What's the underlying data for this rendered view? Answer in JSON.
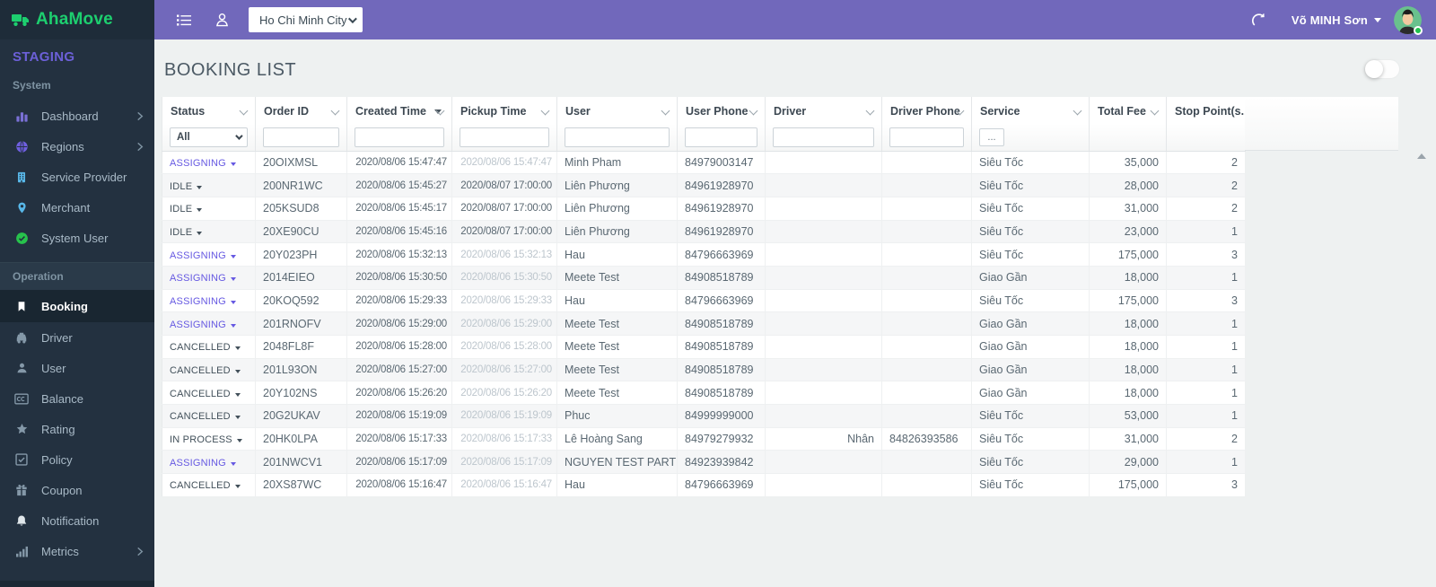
{
  "brand": {
    "name": "AhaMove",
    "env": "STAGING",
    "logo_icon": "truck-icon",
    "green": "#1dcf6f",
    "env_color": "#6c60d8"
  },
  "topbar": {
    "menu_icon": "menu-icon",
    "profile_icon": "user-outline-icon",
    "city": "Ho Chi Minh City",
    "refresh_icon": "refresh-icon",
    "user": "Võ MINH Sơn",
    "bar_color": "#7168bb"
  },
  "sidebar": {
    "sections": [
      {
        "label": "System",
        "band": false,
        "items": [
          {
            "label": "Dashboard",
            "icon": "bar-chart-icon",
            "icon_color": "#7a70d6",
            "chevron": true
          },
          {
            "label": "Regions",
            "icon": "globe-icon",
            "icon_color": "#6f5fe0",
            "chevron": true
          },
          {
            "label": "Service Provider",
            "icon": "building-icon",
            "icon_color": "#58b7e8",
            "chevron": false
          },
          {
            "label": "Merchant",
            "icon": "map-pin-icon",
            "icon_color": "#58b7e8",
            "chevron": false
          },
          {
            "label": "System User",
            "icon": "check-circle-icon",
            "icon_color": "#27c24c",
            "chevron": false
          }
        ]
      },
      {
        "label": "Operation",
        "band": true,
        "items": [
          {
            "label": "Booking",
            "icon": "bookmark-icon",
            "icon_color": "#ffffff",
            "chevron": false,
            "active": true
          },
          {
            "label": "Driver",
            "icon": "car-icon",
            "icon_color": "#8498a8",
            "chevron": false
          },
          {
            "label": "User",
            "icon": "user-icon",
            "icon_color": "#8498a8",
            "chevron": false
          },
          {
            "label": "Balance",
            "icon": "credit-card-icon",
            "icon_color": "#8498a8",
            "chevron": false
          },
          {
            "label": "Rating",
            "icon": "star-icon",
            "icon_color": "#8498a8",
            "chevron": false
          },
          {
            "label": "Policy",
            "icon": "check-square-icon",
            "icon_color": "#8498a8",
            "chevron": false
          },
          {
            "label": "Coupon",
            "icon": "gift-icon",
            "icon_color": "#8498a8",
            "chevron": false
          },
          {
            "label": "Notification",
            "icon": "bell-icon",
            "icon_color": "#dfe6ea",
            "chevron": false
          },
          {
            "label": "Metrics",
            "icon": "chart-icon",
            "icon_color": "#8498a8",
            "chevron": true
          }
        ]
      }
    ]
  },
  "page": {
    "title": "BOOKING LIST"
  },
  "table": {
    "columns": [
      {
        "label": "Status",
        "chevron": true,
        "filter": "select",
        "filter_value": "All"
      },
      {
        "label": "Order ID",
        "chevron": true,
        "filter": "input"
      },
      {
        "label": "Created Time",
        "chevron": true,
        "sorted": true,
        "filter": "input"
      },
      {
        "label": "Pickup Time",
        "chevron": true,
        "filter": "input"
      },
      {
        "label": "User",
        "chevron": true,
        "filter": "input"
      },
      {
        "label": "User Phone",
        "chevron": true,
        "filter": "input"
      },
      {
        "label": "Driver",
        "chevron": true,
        "filter": "input"
      },
      {
        "label": "Driver Phone",
        "chevron": true,
        "filter": "input"
      },
      {
        "label": "Service",
        "chevron": true,
        "filter": "button",
        "filter_value": "..."
      },
      {
        "label": "Total Fee",
        "chevron": true,
        "filter": "none"
      },
      {
        "label": "Stop Point(s...",
        "chevron": false,
        "filter": "none"
      }
    ],
    "status_accent_color": "#6659e2",
    "rows": [
      {
        "status": "ASSIGNING",
        "status_accent": true,
        "order_id": "20OIXMSL",
        "created": "2020/08/06 15:47:47",
        "pickup": "2020/08/06 15:47:47",
        "pickup_muted": true,
        "user": "Minh Pham",
        "user_phone": "84979003147",
        "driver": "",
        "driver_phone": "",
        "service": "Siêu Tốc",
        "total_fee": "35,000",
        "stops": "2"
      },
      {
        "status": "IDLE",
        "status_accent": false,
        "order_id": "200NR1WC",
        "created": "2020/08/06 15:45:27",
        "pickup": "2020/08/07 17:00:00",
        "pickup_muted": false,
        "user": "Liên Phương",
        "user_phone": "84961928970",
        "driver": "",
        "driver_phone": "",
        "service": "Siêu Tốc",
        "total_fee": "28,000",
        "stops": "2"
      },
      {
        "status": "IDLE",
        "status_accent": false,
        "order_id": "205KSUD8",
        "created": "2020/08/06 15:45:17",
        "pickup": "2020/08/07 17:00:00",
        "pickup_muted": false,
        "user": "Liên Phương",
        "user_phone": "84961928970",
        "driver": "",
        "driver_phone": "",
        "service": "Siêu Tốc",
        "total_fee": "31,000",
        "stops": "2"
      },
      {
        "status": "IDLE",
        "status_accent": false,
        "order_id": "20XE90CU",
        "created": "2020/08/06 15:45:16",
        "pickup": "2020/08/07 17:00:00",
        "pickup_muted": false,
        "user": "Liên Phương",
        "user_phone": "84961928970",
        "driver": "",
        "driver_phone": "",
        "service": "Siêu Tốc",
        "total_fee": "23,000",
        "stops": "1"
      },
      {
        "status": "ASSIGNING",
        "status_accent": true,
        "order_id": "20Y023PH",
        "created": "2020/08/06 15:32:13",
        "pickup": "2020/08/06 15:32:13",
        "pickup_muted": true,
        "user": "Hau",
        "user_phone": "84796663969",
        "driver": "",
        "driver_phone": "",
        "service": "Siêu Tốc",
        "total_fee": "175,000",
        "stops": "3"
      },
      {
        "status": "ASSIGNING",
        "status_accent": true,
        "order_id": "2014EIEO",
        "created": "2020/08/06 15:30:50",
        "pickup": "2020/08/06 15:30:50",
        "pickup_muted": true,
        "user": "Meete Test",
        "user_phone": "84908518789",
        "driver": "",
        "driver_phone": "",
        "service": "Giao Gần",
        "total_fee": "18,000",
        "stops": "1"
      },
      {
        "status": "ASSIGNING",
        "status_accent": true,
        "order_id": "20KOQ592",
        "created": "2020/08/06 15:29:33",
        "pickup": "2020/08/06 15:29:33",
        "pickup_muted": true,
        "user": "Hau",
        "user_phone": "84796663969",
        "driver": "",
        "driver_phone": "",
        "service": "Siêu Tốc",
        "total_fee": "175,000",
        "stops": "3"
      },
      {
        "status": "ASSIGNING",
        "status_accent": true,
        "order_id": "201RNOFV",
        "created": "2020/08/06 15:29:00",
        "pickup": "2020/08/06 15:29:00",
        "pickup_muted": true,
        "user": "Meete Test",
        "user_phone": "84908518789",
        "driver": "",
        "driver_phone": "",
        "service": "Giao Gần",
        "total_fee": "18,000",
        "stops": "1"
      },
      {
        "status": "CANCELLED",
        "status_accent": false,
        "order_id": "2048FL8F",
        "created": "2020/08/06 15:28:00",
        "pickup": "2020/08/06 15:28:00",
        "pickup_muted": true,
        "user": "Meete Test",
        "user_phone": "84908518789",
        "driver": "",
        "driver_phone": "",
        "service": "Giao Gần",
        "total_fee": "18,000",
        "stops": "1"
      },
      {
        "status": "CANCELLED",
        "status_accent": false,
        "order_id": "201L93ON",
        "created": "2020/08/06 15:27:00",
        "pickup": "2020/08/06 15:27:00",
        "pickup_muted": true,
        "user": "Meete Test",
        "user_phone": "84908518789",
        "driver": "",
        "driver_phone": "",
        "service": "Giao Gần",
        "total_fee": "18,000",
        "stops": "1"
      },
      {
        "status": "CANCELLED",
        "status_accent": false,
        "order_id": "20Y102NS",
        "created": "2020/08/06 15:26:20",
        "pickup": "2020/08/06 15:26:20",
        "pickup_muted": true,
        "user": "Meete Test",
        "user_phone": "84908518789",
        "driver": "",
        "driver_phone": "",
        "service": "Giao Gần",
        "total_fee": "18,000",
        "stops": "1"
      },
      {
        "status": "CANCELLED",
        "status_accent": false,
        "order_id": "20G2UKAV",
        "created": "2020/08/06 15:19:09",
        "pickup": "2020/08/06 15:19:09",
        "pickup_muted": true,
        "user": "Phuc",
        "user_phone": "84999999000",
        "driver": "",
        "driver_phone": "",
        "service": "Siêu Tốc",
        "total_fee": "53,000",
        "stops": "1"
      },
      {
        "status": "IN PROCESS",
        "status_accent": false,
        "order_id": "20HK0LPA",
        "created": "2020/08/06 15:17:33",
        "pickup": "2020/08/06 15:17:33",
        "pickup_muted": true,
        "user": "Lê Hoàng Sang",
        "user_phone": "84979279932",
        "driver": "Nhân",
        "driver_phone": "84826393586",
        "service": "Siêu Tốc",
        "total_fee": "31,000",
        "stops": "2"
      },
      {
        "status": "ASSIGNING",
        "status_accent": true,
        "order_id": "201NWCV1",
        "created": "2020/08/06 15:17:09",
        "pickup": "2020/08/06 15:17:09",
        "pickup_muted": true,
        "user": "NGUYEN TEST PARTN...",
        "user_phone": "84923939842",
        "driver": "",
        "driver_phone": "",
        "service": "Siêu Tốc",
        "total_fee": "29,000",
        "stops": "1"
      },
      {
        "status": "CANCELLED",
        "status_accent": false,
        "order_id": "20XS87WC",
        "created": "2020/08/06 15:16:47",
        "pickup": "2020/08/06 15:16:47",
        "pickup_muted": true,
        "user": "Hau",
        "user_phone": "84796663969",
        "driver": "",
        "driver_phone": "",
        "service": "Siêu Tốc",
        "total_fee": "175,000",
        "stops": "3"
      }
    ]
  }
}
